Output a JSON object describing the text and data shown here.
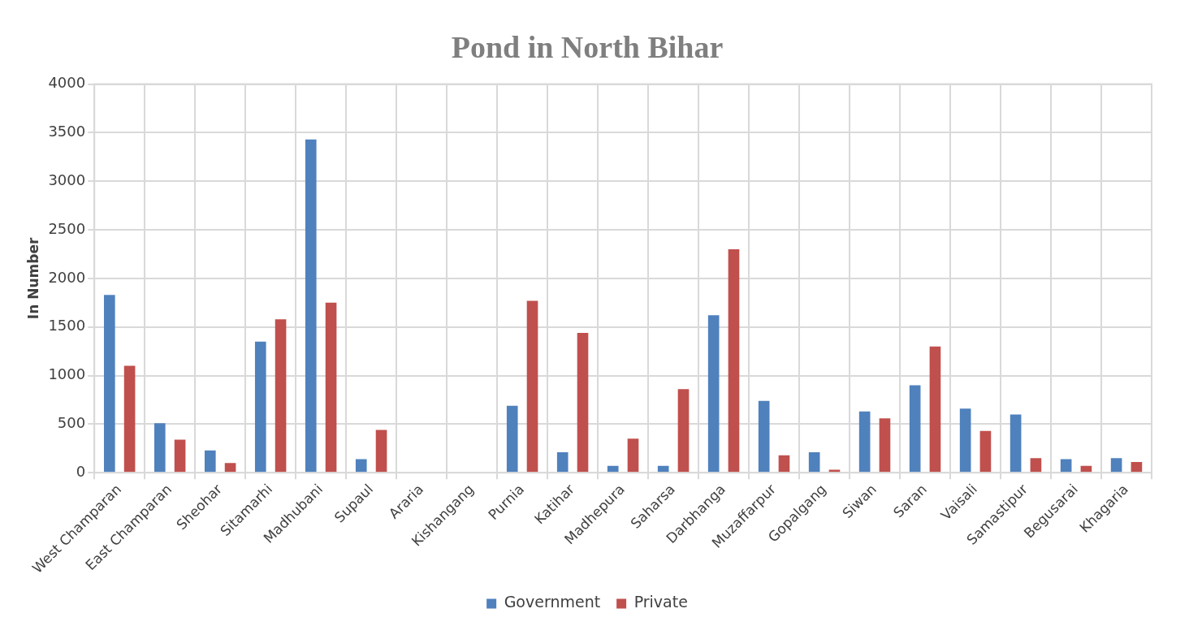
{
  "chart_data": {
    "type": "bar",
    "title": "Pond in North Bihar",
    "ylabel": "In Number",
    "categories": [
      "West Champaran",
      "East Champaran",
      "Sheohar",
      "Sitamarhi",
      "Madhubani",
      "Supaul",
      "Araria",
      "Kishangang",
      "Purnia",
      "Katihar",
      "Madhepura",
      "Saharsa",
      "Darbhanga",
      "Muzaffarpur",
      "Gopalgang",
      "Siwan",
      "Saran",
      "Vaisali",
      "Samastipur",
      "Begusarai",
      "Khagaria"
    ],
    "series": [
      {
        "name": "Government",
        "color": "#4f81bd",
        "values": [
          1830,
          510,
          230,
          1350,
          3430,
          140,
          0,
          0,
          690,
          210,
          70,
          70,
          1620,
          740,
          210,
          630,
          900,
          660,
          600,
          140,
          150
        ]
      },
      {
        "name": "Private",
        "color": "#c0504d",
        "values": [
          1100,
          340,
          100,
          1580,
          1750,
          440,
          0,
          0,
          1770,
          1440,
          350,
          860,
          2300,
          180,
          30,
          560,
          1300,
          430,
          150,
          70,
          110
        ]
      }
    ],
    "ylim": [
      0,
      4000
    ],
    "yticks": [
      0,
      500,
      1000,
      1500,
      2000,
      2500,
      3000,
      3500,
      4000
    ],
    "grid": true,
    "legend": "bottom"
  }
}
